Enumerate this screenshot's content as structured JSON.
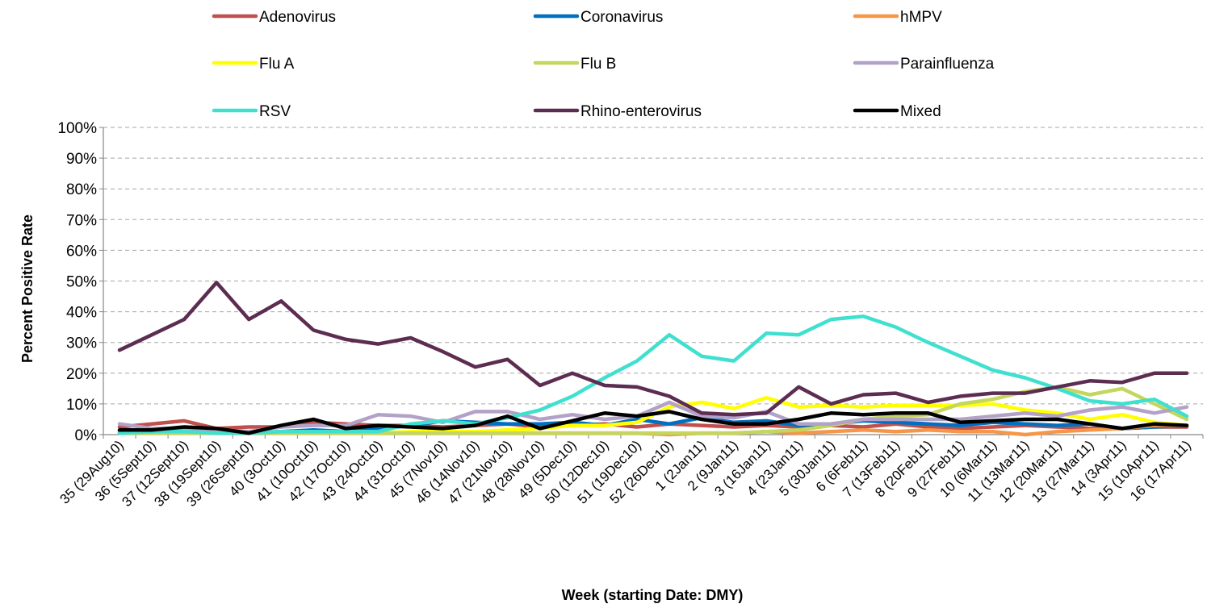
{
  "chart_data": {
    "type": "line",
    "title": "",
    "xlabel": "Week (starting Date: DMY)",
    "ylabel": "Percent Positive Rate",
    "ylim": [
      0,
      100
    ],
    "y_ticks": [
      "0%",
      "10%",
      "20%",
      "30%",
      "40%",
      "50%",
      "60%",
      "70%",
      "80%",
      "90%",
      "100%"
    ],
    "grid": true,
    "legend_position": "top",
    "categories": [
      "35 (29Aug10)",
      "36 (5Sept10)",
      "37 (12Sept10)",
      "38 (19Sept10)",
      "39 (26Sept10)",
      "40 (3Oct10)",
      "41 (10Oct10)",
      "42 (17Oct10)",
      "43 (24Oct10)",
      "44 (31Oct10)",
      "45 (7Nov10)",
      "46 (14Nov10)",
      "47 (21Nov10)",
      "48 (28Nov10)",
      "49 (5Dec10)",
      "50 (12Dec10)",
      "51 (19Dec10)",
      "52 (26Dec10)",
      "1 (2Jan11)",
      "2 (9Jan11)",
      "3 (16Jan11)",
      "4 (23Jan11)",
      "5 (30Jan11)",
      "6 (6Feb11)",
      "7 (13Feb11)",
      "8 (20Feb11)",
      "9 (27Feb11)",
      "10 (6Mar11)",
      "11 (13Mar11)",
      "12 (20Mar11)",
      "13 (27Mar11)",
      "14 (3Apr11)",
      "15 (10Apr11)",
      "16 (17Apr11)"
    ],
    "series": [
      {
        "name": "Adenovirus",
        "color": "#c0504d",
        "values": [
          2.5,
          3.5,
          4.5,
          2.0,
          2.5,
          2.5,
          4.0,
          3.5,
          3.0,
          3.0,
          2.5,
          3.0,
          3.5,
          2.5,
          3.0,
          3.5,
          2.5,
          3.5,
          3.0,
          2.5,
          3.0,
          2.5,
          3.0,
          2.5,
          3.5,
          2.5,
          2.0,
          2.5,
          3.0,
          2.5,
          2.0,
          2.0,
          2.5,
          2.5
        ]
      },
      {
        "name": "Coronavirus",
        "color": "#0070c0",
        "values": [
          1.0,
          0.5,
          1.0,
          1.0,
          0.5,
          1.0,
          1.5,
          1.0,
          2.0,
          3.0,
          4.5,
          4.0,
          3.5,
          3.5,
          4.0,
          3.0,
          5.0,
          3.5,
          5.5,
          4.0,
          4.5,
          3.0,
          3.5,
          4.5,
          4.0,
          3.5,
          3.0,
          4.0,
          3.5,
          3.0,
          3.5,
          2.0,
          2.5,
          3.0
        ]
      },
      {
        "name": "hMPV",
        "color": "#f79646",
        "values": [
          0.5,
          0.5,
          0.5,
          0.5,
          0.5,
          0.5,
          0.5,
          0.5,
          0.5,
          0.5,
          0.5,
          0.5,
          0.5,
          0.5,
          0.5,
          0.5,
          0.5,
          0.0,
          0.5,
          0.5,
          1.0,
          0.5,
          1.0,
          1.5,
          1.0,
          1.5,
          1.0,
          1.0,
          0.0,
          1.0,
          1.5,
          2.0,
          3.0,
          3.0
        ]
      },
      {
        "name": "Flu A",
        "color": "#ffff00",
        "values": [
          0.5,
          0.5,
          0.5,
          0.5,
          0.5,
          0.5,
          0.5,
          0.5,
          0.5,
          1.0,
          1.0,
          1.0,
          1.5,
          2.0,
          3.0,
          3.0,
          4.0,
          9.0,
          10.5,
          8.5,
          12.0,
          9.0,
          9.5,
          9.0,
          9.5,
          9.5,
          9.5,
          10.0,
          8.0,
          7.0,
          5.0,
          6.5,
          4.0,
          3.0
        ]
      },
      {
        "name": "Flu B",
        "color": "#c4d65e",
        "values": [
          0.5,
          0.5,
          0.5,
          0.5,
          0.5,
          0.5,
          0.5,
          0.5,
          0.5,
          0.5,
          0.5,
          0.5,
          0.5,
          0.5,
          0.5,
          0.5,
          0.5,
          0.5,
          0.5,
          0.5,
          1.0,
          1.5,
          3.0,
          5.0,
          6.0,
          6.5,
          10.0,
          11.5,
          14.0,
          15.5,
          13.0,
          15.0,
          10.0,
          5.0
        ]
      },
      {
        "name": "Parainfluenza",
        "color": "#b3a2c7",
        "values": [
          3.5,
          2.0,
          2.0,
          1.5,
          1.0,
          2.5,
          3.0,
          3.0,
          6.5,
          6.0,
          4.0,
          7.5,
          7.5,
          5.0,
          6.5,
          5.0,
          6.0,
          10.5,
          6.0,
          5.5,
          7.5,
          3.5,
          3.5,
          5.0,
          5.0,
          5.0,
          5.0,
          6.0,
          7.0,
          6.0,
          8.0,
          9.0,
          7.0,
          9.0
        ]
      },
      {
        "name": "RSV",
        "color": "#40e0d0",
        "values": [
          0.5,
          1.0,
          1.0,
          0.5,
          0.5,
          1.0,
          1.0,
          1.0,
          1.0,
          3.5,
          4.5,
          3.5,
          5.5,
          8.0,
          12.5,
          18.5,
          24.0,
          32.5,
          25.5,
          24.0,
          33.0,
          32.5,
          37.5,
          38.5,
          35.0,
          30.0,
          25.5,
          21.0,
          18.5,
          15.0,
          11.0,
          10.0,
          11.5,
          6.0
        ]
      },
      {
        "name": "Rhino-enterovirus",
        "color": "#5c2d50",
        "values": [
          27.5,
          32.5,
          37.5,
          49.5,
          37.5,
          43.5,
          34.0,
          31.0,
          29.5,
          31.5,
          27.0,
          22.0,
          24.5,
          16.0,
          20.0,
          16.0,
          15.5,
          12.5,
          7.0,
          6.5,
          7.0,
          15.5,
          10.0,
          13.0,
          13.5,
          10.5,
          12.5,
          13.5,
          13.5,
          15.5,
          17.5,
          17.0,
          20.0,
          20.0
        ]
      },
      {
        "name": "Mixed",
        "color": "#000000",
        "values": [
          1.5,
          1.5,
          2.5,
          2.0,
          0.5,
          3.0,
          5.0,
          2.0,
          3.0,
          2.5,
          2.0,
          3.0,
          6.0,
          2.0,
          4.5,
          7.0,
          6.0,
          7.5,
          5.0,
          3.5,
          3.5,
          5.0,
          7.0,
          6.5,
          7.0,
          7.0,
          4.0,
          4.5,
          5.0,
          5.0,
          3.5,
          2.0,
          3.5,
          3.0
        ]
      }
    ]
  }
}
